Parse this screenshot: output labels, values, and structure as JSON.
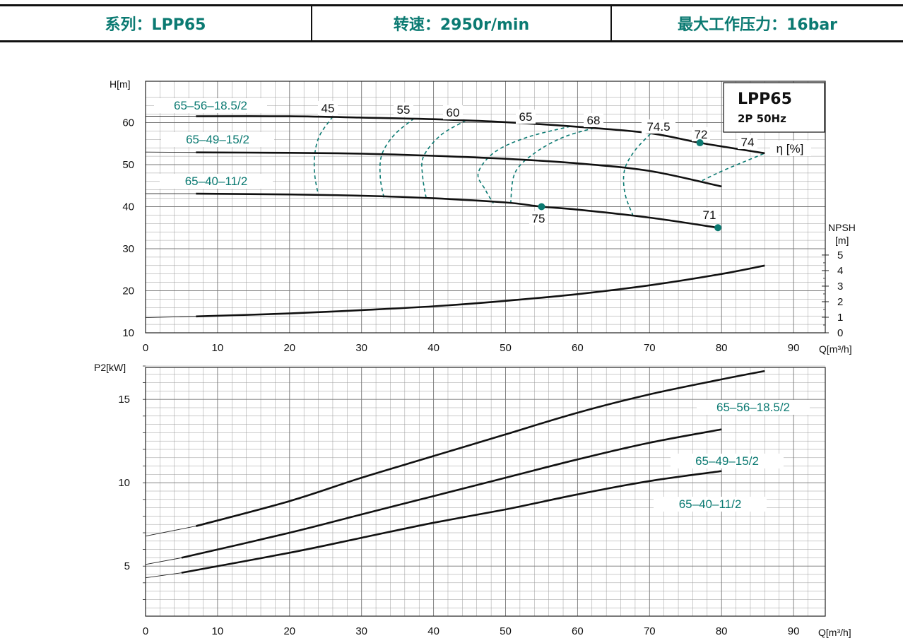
{
  "header": {
    "series": "系列：LPP65",
    "speed": "转速：2950r/min",
    "pressure": "最大工作压力：16bar"
  },
  "colors": {
    "accent": "#0b7a72",
    "curve": "#111111",
    "grid": "#9a9a9a"
  },
  "chart_data": [
    {
      "type": "line",
      "title": "LPP65",
      "subtitle": "2P  50Hz",
      "ylabel": "H[m]",
      "xlabel": "Q[m³/h]",
      "xlim": [
        0,
        93
      ],
      "ylim": [
        10,
        68
      ],
      "xticks": [
        0,
        10,
        20,
        30,
        40,
        50,
        60,
        70,
        80,
        90
      ],
      "yticks": [
        10,
        20,
        30,
        40,
        50,
        60
      ],
      "grid": true,
      "series": [
        {
          "name": "65-56-18.5/2",
          "points": [
            [
              7,
              61.5
            ],
            [
              20,
              61.5
            ],
            [
              30,
              61.2
            ],
            [
              40,
              60.8
            ],
            [
              50,
              60.1
            ],
            [
              60,
              59.0
            ],
            [
              70,
              57.5
            ],
            [
              77,
              55.2
            ],
            [
              86,
              52.7
            ]
          ],
          "lead": [
            0,
            61.5
          ]
        },
        {
          "name": "65-49-15/2",
          "points": [
            [
              7,
              52.9
            ],
            [
              20,
              52.8
            ],
            [
              30,
              52.6
            ],
            [
              40,
              52.1
            ],
            [
              50,
              51.4
            ],
            [
              60,
              50.3
            ],
            [
              70,
              48.5
            ],
            [
              80,
              44.8
            ]
          ],
          "lead": [
            0,
            53.0
          ]
        },
        {
          "name": "65-40-11/2",
          "points": [
            [
              7,
              43.1
            ],
            [
              20,
              42.9
            ],
            [
              30,
              42.6
            ],
            [
              40,
              42.0
            ],
            [
              50,
              41.0
            ],
            [
              55,
              40.0
            ],
            [
              60,
              39.3
            ],
            [
              70,
              37.4
            ],
            [
              79.5,
              35.0
            ]
          ],
          "lead": [
            0,
            43.1
          ]
        }
      ],
      "series_labels": [
        "65–56–18.5/2",
        "65–49–15/2",
        "65–40–11/2"
      ],
      "npsh": {
        "label_top": "NPSH",
        "label_bottom": "[m]",
        "ticks": [
          0,
          1,
          2,
          3,
          4,
          5
        ],
        "h_at_zero": 10,
        "h_per_m": 3.7,
        "points": [
          [
            7,
            13.9
          ],
          [
            20,
            14.6
          ],
          [
            30,
            15.4
          ],
          [
            40,
            16.3
          ],
          [
            50,
            17.6
          ],
          [
            60,
            19.2
          ],
          [
            70,
            21.3
          ],
          [
            80,
            24.0
          ],
          [
            86,
            26.0
          ]
        ],
        "lead": [
          0,
          13.6
        ]
      },
      "efficiency": {
        "unit": "η [%]",
        "contours": [
          {
            "label": "45",
            "points": [
              [
                26,
                61.4
              ],
              [
                24.2,
                57
              ],
              [
                23.5,
                52.5
              ],
              [
                23.5,
                47.5
              ],
              [
                24,
                42.8
              ]
            ]
          },
          {
            "label": "55",
            "points": [
              [
                37.3,
                61.0
              ],
              [
                34.5,
                57
              ],
              [
                32.8,
                52.3
              ],
              [
                32.6,
                47
              ],
              [
                33.1,
                42.2
              ]
            ]
          },
          {
            "label": "60",
            "points": [
              [
                44.5,
                60.5
              ],
              [
                41,
                57
              ],
              [
                38.6,
                51.9
              ],
              [
                38.5,
                47
              ],
              [
                39,
                41.8
              ]
            ]
          },
          {
            "label": "65",
            "points": [
              [
                59,
                59.1
              ],
              [
                53,
                56.5
              ],
              [
                48.5,
                53
              ],
              [
                46.2,
                48
              ],
              [
                47.2,
                44
              ],
              [
                48.3,
                40.8
              ]
            ]
          },
          {
            "label": "68",
            "points": [
              [
                62.3,
                58.7
              ],
              [
                58,
                56.5
              ],
              [
                54,
                52.7
              ],
              [
                51.3,
                48
              ],
              [
                50.7,
                40.5
              ]
            ]
          },
          {
            "label": "74.5",
            "points": [
              [
                70.1,
                57.3
              ],
              [
                67.8,
                53
              ],
              [
                66.5,
                48.5
              ],
              [
                66.6,
                43
              ],
              [
                67.8,
                37.5
              ]
            ]
          },
          {
            "label": "74",
            "points": [
              [
                77.3,
                46.2
              ],
              [
                80.5,
                48.8
              ],
              [
                86,
                52.7
              ]
            ]
          }
        ],
        "extra_labels": [
          "72",
          "75",
          "71"
        ],
        "markers": [
          [
            77,
            55.2
          ],
          [
            55,
            40.0
          ],
          [
            79.5,
            35.0
          ]
        ]
      }
    },
    {
      "type": "line",
      "ylabel": "P2[kW]",
      "xlabel": "Q[m³/h]",
      "xlim": [
        0,
        93
      ],
      "ylim": [
        2,
        17.5
      ],
      "xticks": [
        0,
        10,
        20,
        30,
        40,
        50,
        60,
        70,
        80,
        90
      ],
      "yticks": [
        5,
        10,
        15
      ],
      "grid": true,
      "series": [
        {
          "name": "65-56-18.5/2",
          "points": [
            [
              7,
              7.4
            ],
            [
              20,
              8.9
            ],
            [
              30,
              10.3
            ],
            [
              40,
              11.6
            ],
            [
              50,
              12.9
            ],
            [
              60,
              14.2
            ],
            [
              70,
              15.3
            ],
            [
              80,
              16.2
            ],
            [
              86,
              16.7
            ]
          ],
          "lead": [
            0,
            6.8
          ]
        },
        {
          "name": "65-49-15/2",
          "points": [
            [
              5,
              5.5
            ],
            [
              20,
              7.0
            ],
            [
              30,
              8.1
            ],
            [
              40,
              9.2
            ],
            [
              50,
              10.3
            ],
            [
              60,
              11.4
            ],
            [
              70,
              12.4
            ],
            [
              80,
              13.2
            ]
          ],
          "lead": [
            0,
            5.1
          ]
        },
        {
          "name": "65-40-11/2",
          "points": [
            [
              5,
              4.6
            ],
            [
              20,
              5.8
            ],
            [
              30,
              6.7
            ],
            [
              40,
              7.6
            ],
            [
              50,
              8.4
            ],
            [
              60,
              9.3
            ],
            [
              70,
              10.1
            ],
            [
              80,
              10.7
            ]
          ],
          "lead": [
            0,
            4.3
          ]
        }
      ],
      "series_labels": [
        "65–56–18.5/2",
        "65–49–15/2",
        "65–40–11/2"
      ]
    }
  ]
}
